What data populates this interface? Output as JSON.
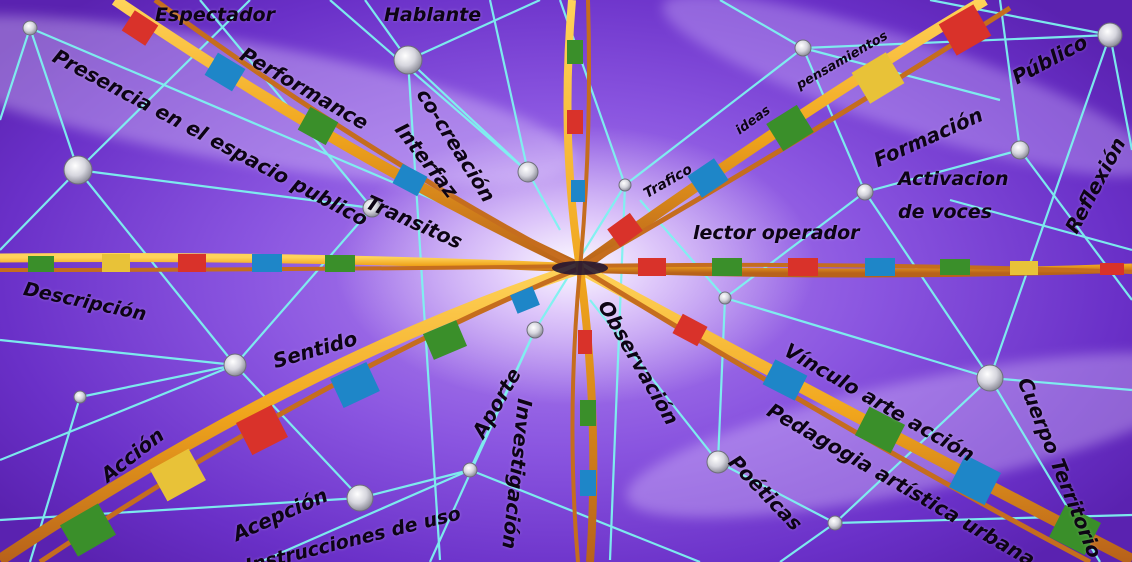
{
  "colors": {
    "line": "#7ef3f0",
    "ribbon": "#f0a51c",
    "ribbon_edge": "#b8621a",
    "stripe_red": "#d9322a",
    "stripe_green": "#3a8f2a",
    "stripe_blue": "#1e86c8",
    "stripe_yellow": "#e8c238",
    "node": "#e8e8ee"
  },
  "labels": {
    "espectador": "Espectador",
    "hablante": "Hablante",
    "pensamientos": "pensamientos",
    "publico": "Público",
    "presencia": "Presencia en el espacio publico",
    "performance": "Performance",
    "cocreacion": "co-creación",
    "interfaz": "Interfaz",
    "ideas": "ideas",
    "trafico": "Trafico",
    "formacion": "Formación",
    "activacion1": "Activacion",
    "activacion2": "de voces",
    "reflexion": "Reflexión",
    "transitos": "Transitos",
    "lector": "lector operador",
    "descripcion": "Descripción",
    "sentido": "Sentido",
    "observacion": "Observación",
    "vinculo": "Vínculo arte acción",
    "cuerpo": "Cuerpo Territorio",
    "aporte": "Aporte",
    "investigacion": "Investigación",
    "pedagogia": "Pedagogia artística urbana",
    "accion": "Acción",
    "acepcion": "Acepción",
    "poeticas": "Poéticas",
    "instrucciones": "Instrucciones de uso"
  }
}
